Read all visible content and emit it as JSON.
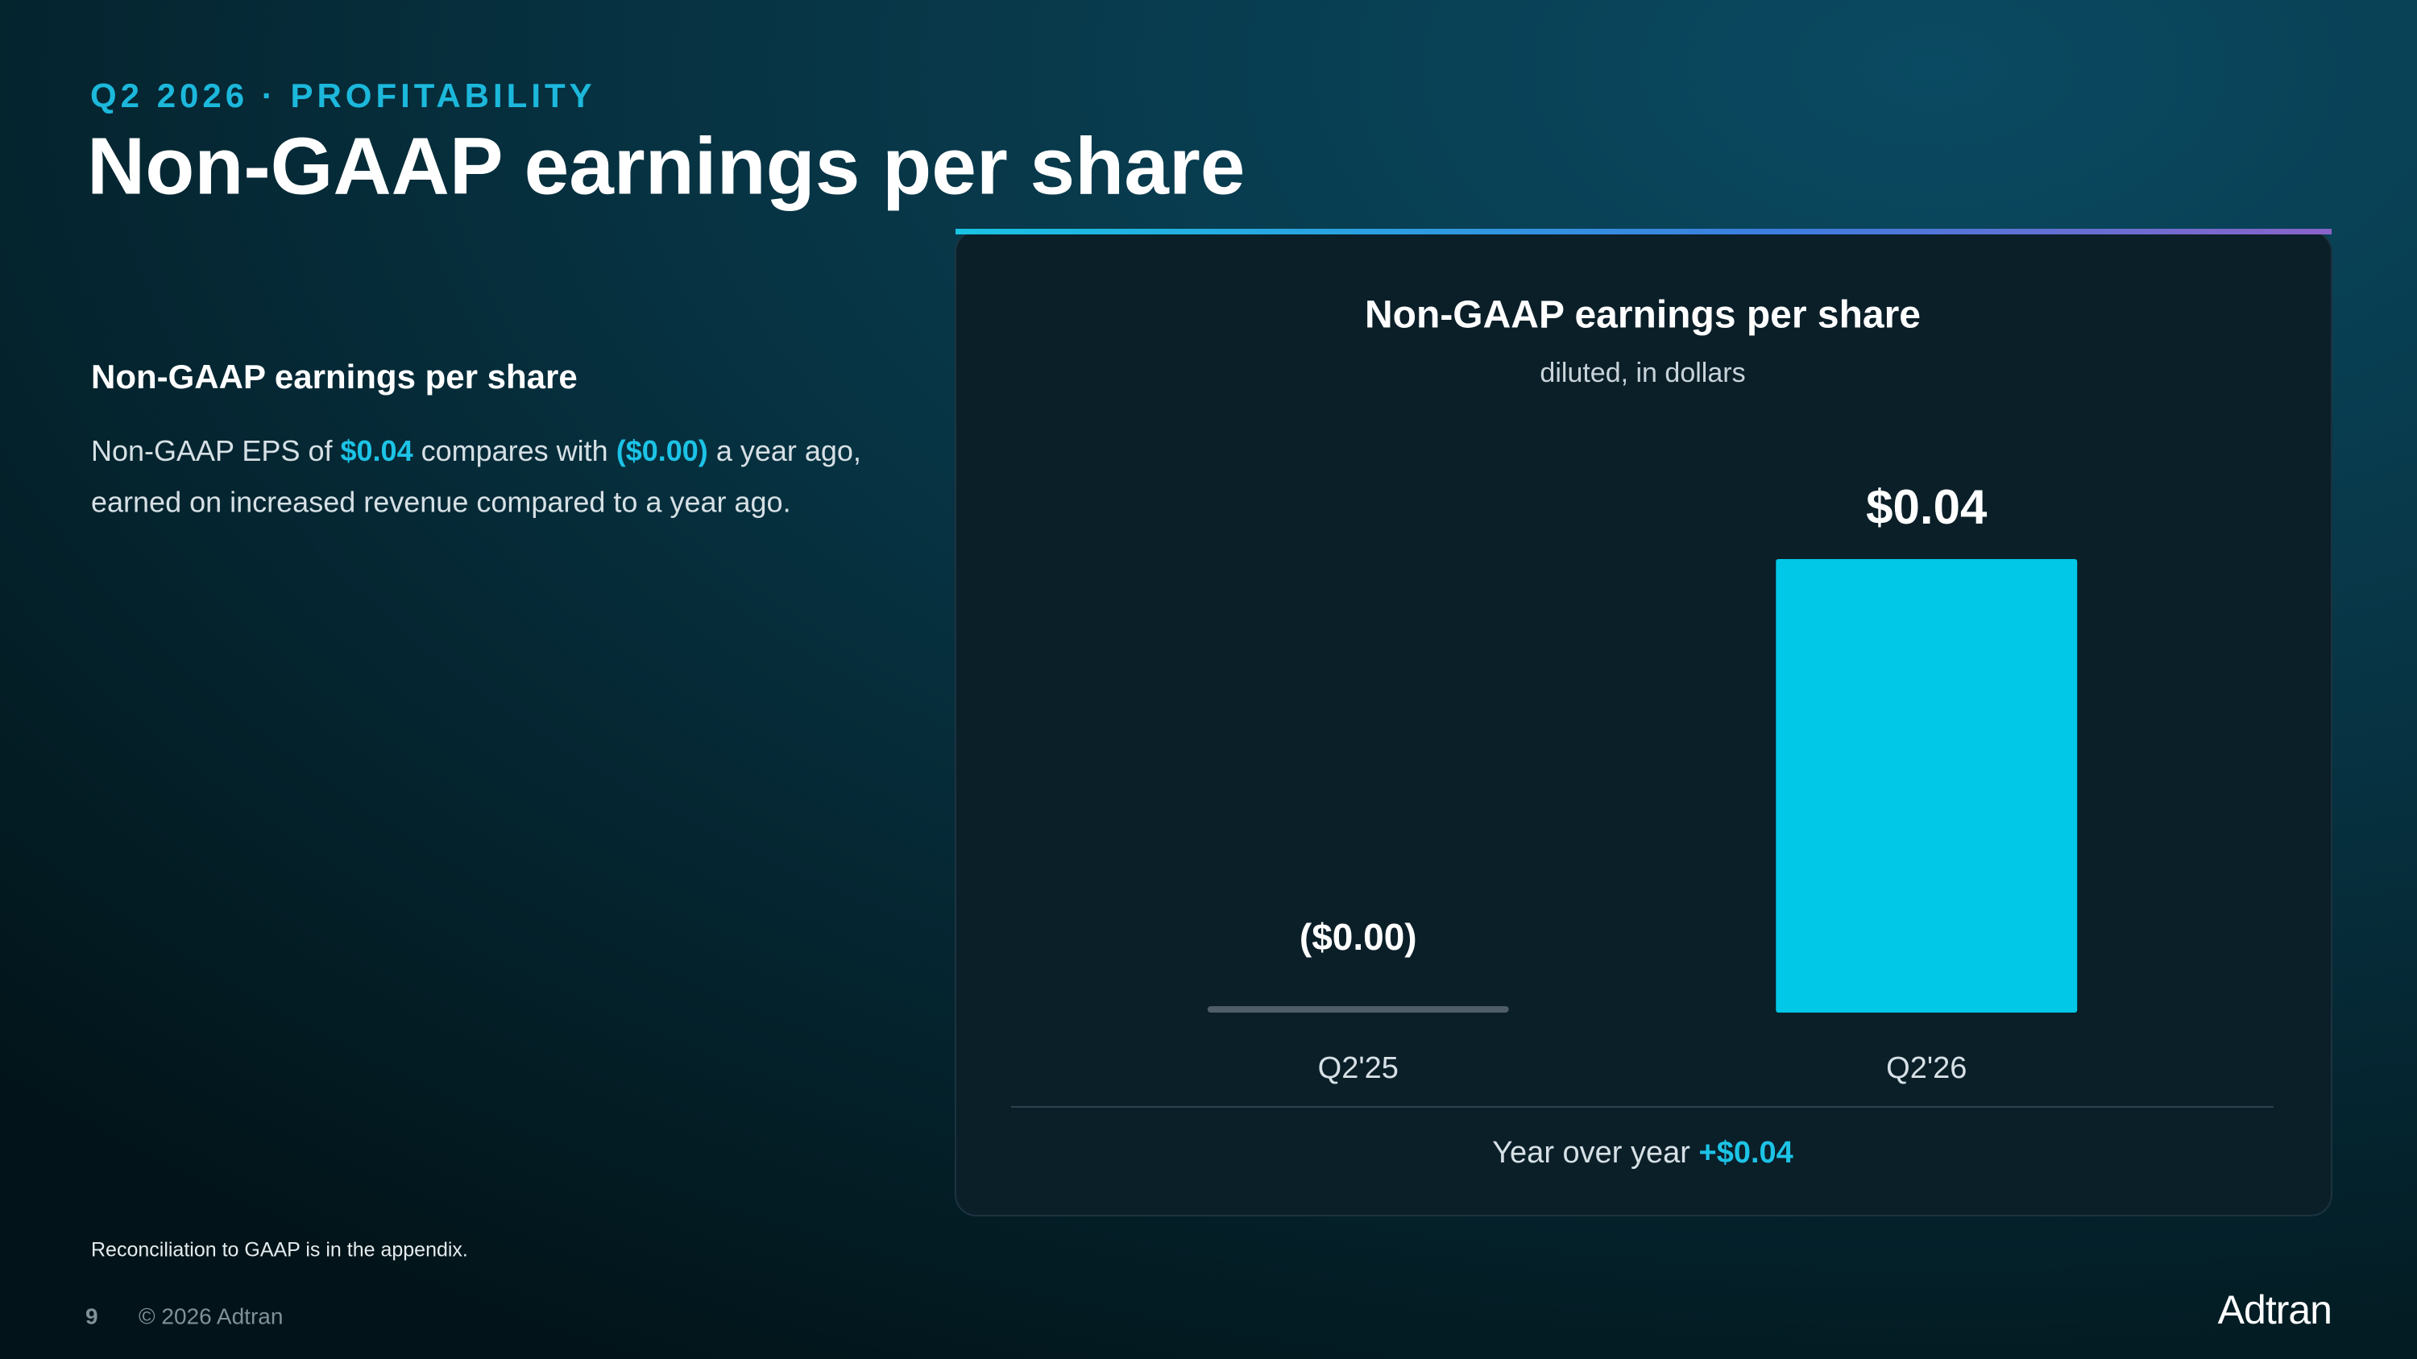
{
  "header": {
    "eyebrow": "Q2 2026 · PROFITABILITY",
    "title": "Non-GAAP earnings per share"
  },
  "body": {
    "heading": "Non-GAAP earnings per share",
    "paragraph": [
      "Non-GAAP EPS of",
      "$0.04",
      "compares with",
      "($0.00)",
      "a year ago,",
      "earned on increased revenue compared to a year ago."
    ]
  },
  "chart_data": {
    "type": "bar",
    "title": "Non-GAAP earnings per share",
    "subtitle": "diluted, in dollars",
    "categories": [
      "Q2'25",
      "Q2'26"
    ],
    "values": [
      0,
      0.04
    ],
    "value_labels": [
      "($0.00)",
      "$0.04"
    ],
    "colors": [
      "#4e5d66",
      "#00c8e6"
    ],
    "summary": {
      "label": "Year over year",
      "value": "+$0.04"
    }
  },
  "footer": {
    "note": "Reconciliation to GAAP is in the appendix.",
    "page": "9",
    "copyright": "© 2026 Adtran",
    "logo": "Adtran"
  }
}
